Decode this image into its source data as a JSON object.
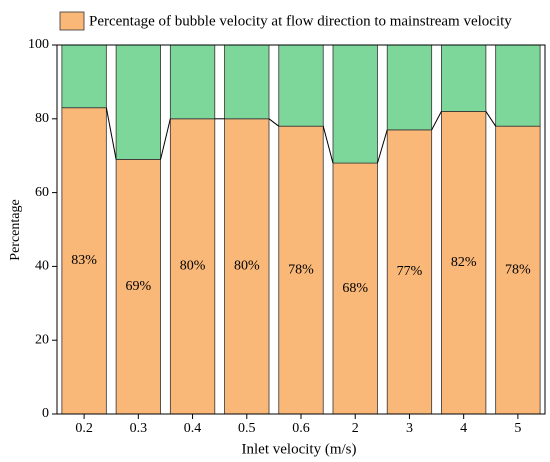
{
  "chart_data": {
    "type": "stacked_bar",
    "categories": [
      "0.2",
      "0.3",
      "0.4",
      "0.5",
      "0.6",
      "2",
      "3",
      "4",
      "5"
    ],
    "series": [
      {
        "name": "Percentage of bubble velocity at flow direction to mainstream velocity",
        "color": "#f9b778",
        "values": [
          83,
          69,
          80,
          80,
          78,
          68,
          77,
          82,
          78
        ],
        "value_labels": [
          "83%",
          "69%",
          "80%",
          "80%",
          "78%",
          "68%",
          "77%",
          "82%",
          "78%"
        ]
      },
      {
        "color": "#7dd69a",
        "values": [
          17,
          31,
          20,
          20,
          22,
          32,
          23,
          18,
          22
        ]
      }
    ],
    "xlabel": "Inlet velocity (m/s)",
    "ylabel": "Percentage",
    "ylim": [
      0,
      100
    ],
    "yticks": [
      0,
      20,
      40,
      60,
      80,
      100
    ]
  }
}
